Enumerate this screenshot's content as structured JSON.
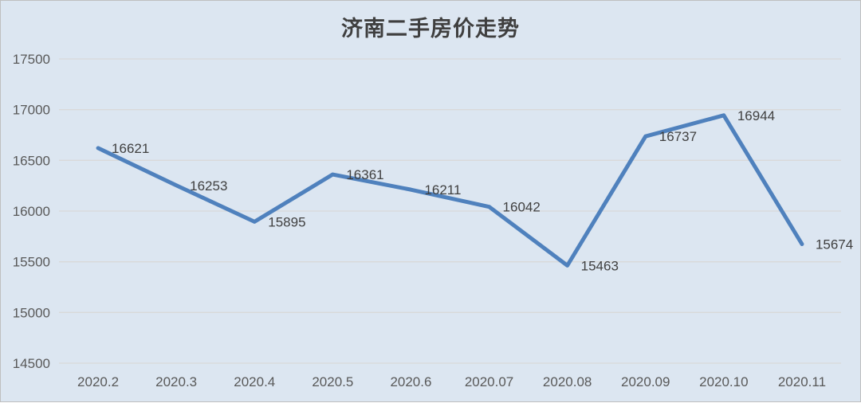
{
  "chart_data": {
    "type": "line",
    "title": "济南二手房价走势",
    "categories": [
      "2020.2",
      "2020.3",
      "2020.4",
      "2020.5",
      "2020.6",
      "2020.07",
      "2020.08",
      "2020.09",
      "2020.10",
      "2020.11"
    ],
    "values": [
      16621,
      16253,
      15895,
      16361,
      16211,
      16042,
      15463,
      16737,
      16944,
      15674
    ],
    "y_ticks": [
      17500,
      17000,
      16500,
      16000,
      15500,
      15000,
      14500
    ],
    "ylim": [
      14500,
      17500
    ],
    "grid": true,
    "legend_position": "none",
    "data_labels": true,
    "colors": {
      "background": "#dce6f1",
      "gridline": "#d9d9d9",
      "line": "#4f81bd",
      "axis_text": "#595959",
      "data_label_text": "#404040",
      "title_text": "#3f3f3f",
      "frame_border": "#bfbfbf"
    }
  }
}
